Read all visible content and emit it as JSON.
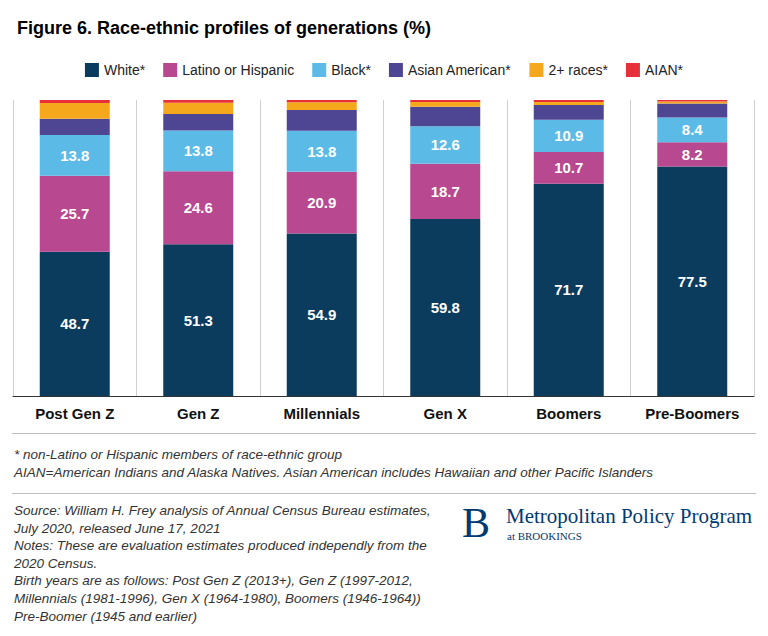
{
  "chart_data": {
    "type": "bar",
    "title": "Figure 6. Race-ethnic profiles of generations (%)",
    "categories": [
      "Post Gen Z",
      "Gen Z",
      "Millennials",
      "Gen X",
      "Boomers",
      "Pre-Boomers"
    ],
    "series": [
      {
        "name": "White*",
        "color": "#0b3c5d",
        "values": [
          48.7,
          51.3,
          54.9,
          59.8,
          71.7,
          77.5
        ],
        "data_labels": true
      },
      {
        "name": "Latino or Hispanic",
        "color": "#b8488f",
        "values": [
          25.7,
          24.6,
          20.9,
          18.7,
          10.7,
          8.2
        ],
        "data_labels": true
      },
      {
        "name": "Black*",
        "color": "#5cbbe6",
        "values": [
          13.8,
          13.8,
          13.8,
          12.6,
          10.9,
          8.4
        ],
        "data_labels": true
      },
      {
        "name": "Asian American*",
        "color": "#4f4693",
        "values": [
          5.5,
          5.6,
          7.0,
          6.6,
          5.0,
          4.7
        ],
        "data_labels": false
      },
      {
        "name": "2+ races*",
        "color": "#f5a81c",
        "values": [
          5.3,
          3.8,
          2.6,
          1.6,
          1.0,
          0.7
        ],
        "data_labels": false
      },
      {
        "name": "AIAN*",
        "color": "#e8303a",
        "values": [
          1.0,
          0.9,
          0.8,
          0.7,
          0.7,
          0.5
        ],
        "data_labels": false
      }
    ],
    "stacked": true,
    "legend": "top",
    "ylim": [
      0,
      100
    ],
    "tick_labels": "x",
    "footnotes": [
      "* non-Latino or Hispanic members of race-ethnic group",
      "AIAN=American Indians and Alaska Natives. Asian American includes Hawaiian and other Pacific Islanders"
    ],
    "source": [
      "Source: William H. Frey analysis of Annual Census Bureau estimates, July 2020, released June 17, 2021",
      "Notes: These are evaluation estimates produced independly from the 2020 Census.",
      "Birth years are as follows: Post Gen Z (2013+), Gen Z (1997-2012, Millennials (1981-1996), Gen X (1964-1980), Boomers (1946-1964)) Pre-Boomer (1945 and earlier)"
    ],
    "logo": {
      "mark": "B",
      "name": "Metropolitan Policy Program",
      "affiliation": "at BROOKINGS"
    }
  }
}
